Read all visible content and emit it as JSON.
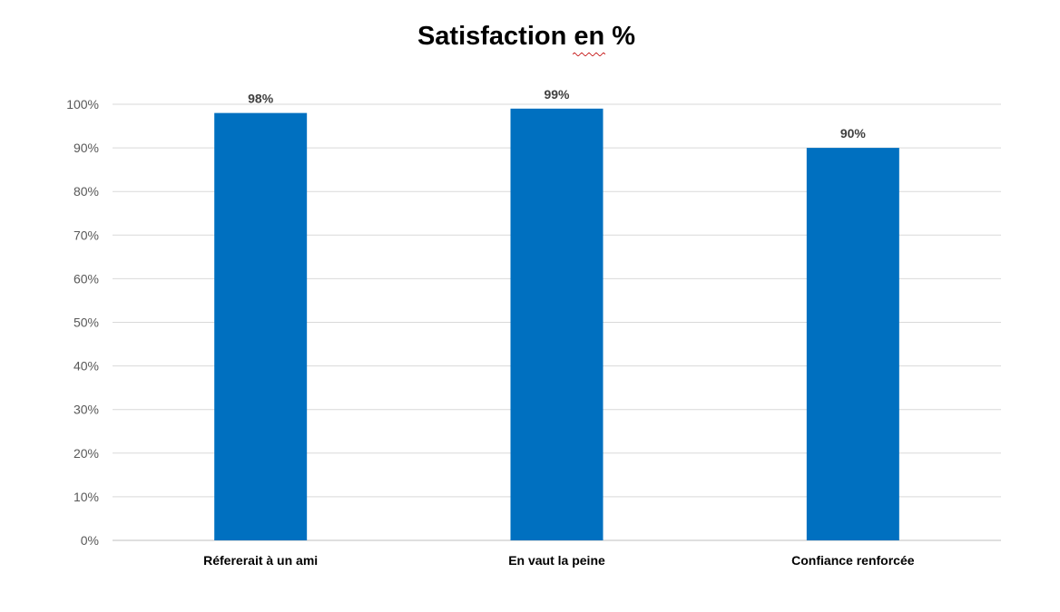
{
  "chart_data": {
    "type": "bar",
    "title": "Satisfaction en %",
    "categories": [
      "Réfererait à un ami",
      "En vaut la peine",
      "Confiance renforcée"
    ],
    "values": [
      98,
      99,
      90
    ],
    "data_labels": [
      "98%",
      "99%",
      "90%"
    ],
    "ylim": [
      0,
      100
    ],
    "y_ticks": [
      0,
      10,
      20,
      30,
      40,
      50,
      60,
      70,
      80,
      90,
      100
    ],
    "y_tick_labels": [
      "0%",
      "10%",
      "20%",
      "30%",
      "40%",
      "50%",
      "60%",
      "70%",
      "80%",
      "90%",
      "100%"
    ],
    "xlabel": "",
    "ylabel": "",
    "grid": true,
    "legend": "none",
    "colors": {
      "bar": "#0070C0",
      "grid": "#D9D9D9",
      "axis": "#BFBFBF"
    }
  }
}
